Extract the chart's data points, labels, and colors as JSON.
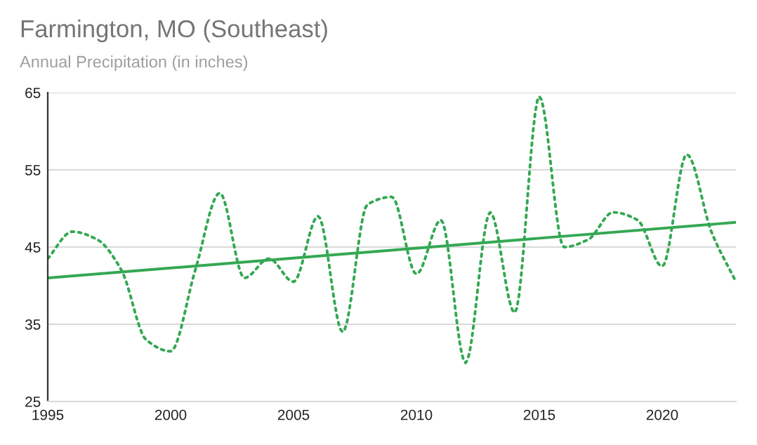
{
  "chart_data": {
    "type": "line",
    "title": "Farmington, MO (Southeast)",
    "subtitle": "Annual Precipitation (in inches)",
    "x": [
      1995,
      1996,
      1997,
      1998,
      1999,
      2000,
      2001,
      2002,
      2003,
      2004,
      2005,
      2006,
      2007,
      2008,
      2009,
      2010,
      2011,
      2012,
      2013,
      2014,
      2015,
      2016,
      2017,
      2018,
      2019,
      2020,
      2021,
      2022,
      2023
    ],
    "series": [
      {
        "color": "#34a853",
        "line_style": "dotted",
        "values": [
          43.5,
          47,
          46,
          42,
          33,
          31.5,
          42,
          52,
          41,
          43.5,
          40.5,
          49,
          34,
          50.5,
          51.5,
          41.5,
          48.5,
          30,
          49.5,
          36.5,
          64.5,
          45,
          46,
          49.5,
          48.5,
          42.5,
          57,
          47,
          40.5
        ]
      },
      {
        "color": "#34a853",
        "line_style": "solid",
        "x": [
          1995,
          2023
        ],
        "values": [
          41,
          48.2
        ]
      }
    ],
    "xlim": [
      1995,
      2023
    ],
    "ylim": [
      25,
      65
    ],
    "xticks": [
      1995,
      2000,
      2005,
      2010,
      2015,
      2020
    ],
    "yticks": [
      25,
      35,
      45,
      55,
      65
    ],
    "grid": "y",
    "legend": false,
    "marker": "none"
  }
}
